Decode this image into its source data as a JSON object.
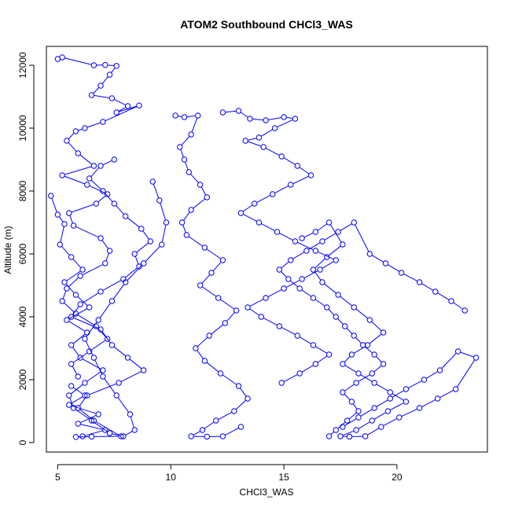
{
  "chart_data": {
    "type": "scatter",
    "title": "ATOM2 Southbound CHCl3_WAS",
    "xlabel": "CHCl3_WAS",
    "ylabel": "Altitude (m)",
    "xlim": [
      4.5,
      24.0
    ],
    "ylim": [
      -300,
      12600
    ],
    "xticks": [
      5,
      10,
      15,
      20
    ],
    "yticks": [
      0,
      2000,
      4000,
      6000,
      8000,
      10000,
      12000
    ],
    "grid": false,
    "colors": {
      "series": "#0000ff",
      "frame": "#000000"
    },
    "series": [
      {
        "x": [
          5.0,
          5.2,
          6.6,
          7.1,
          7.6,
          7.3,
          6.9,
          6.5,
          7.4,
          8.1,
          7.6,
          8.6,
          7.0,
          6.2,
          5.8,
          5.4,
          5.9,
          6.6,
          5.2,
          6.3,
          7.2,
          6.7,
          5.5,
          5.7,
          6.9,
          7.3,
          7.1,
          6.0,
          5.4,
          5.2,
          5.8,
          6.7,
          7.2,
          6.4,
          5.6,
          5.9
        ],
        "y": [
          12200,
          12250,
          12000,
          12010,
          11980,
          11700,
          11350,
          11050,
          10950,
          10700,
          10500,
          10720,
          10200,
          10000,
          9900,
          9600,
          9200,
          8800,
          8500,
          8200,
          7900,
          7600,
          7300,
          6900,
          6500,
          6100,
          5700,
          5300,
          4900,
          4500,
          4100,
          3700,
          3300,
          2900,
          2500,
          2100
        ]
      },
      {
        "x": [
          5.6,
          6.2,
          5.5,
          6.8,
          5.9,
          7.1,
          6.1,
          5.8,
          6.5,
          7.8,
          6.6,
          5.9,
          6.3,
          7.7,
          8.8,
          8.1,
          7.4,
          6.9,
          5.6,
          6.0,
          6.9,
          7.9,
          8.6,
          8.4,
          9.1,
          8.7,
          8.0,
          7.5,
          7.0,
          6.4,
          6.9,
          7.5
        ],
        "y": [
          1800,
          1500,
          1200,
          900,
          600,
          400,
          200,
          180,
          190,
          200,
          700,
          1100,
          1500,
          1900,
          2300,
          2700,
          3100,
          3600,
          4000,
          4400,
          4800,
          5200,
          5600,
          6000,
          6400,
          6800,
          7200,
          7600,
          8000,
          8400,
          8800,
          9000
        ]
      },
      {
        "x": [
          4.7,
          5.0,
          5.3,
          5.1,
          5.6,
          6.1,
          5.3,
          5.8,
          6.4,
          5.4,
          6.3,
          5.6,
          6.0,
          7.0,
          6.2,
          5.5,
          5.7,
          6.5,
          7.3,
          7.9,
          8.4,
          8.2,
          7.6,
          7.0,
          6.6,
          6.2,
          6.8,
          7.4,
          8.0,
          8.8,
          9.6,
          9.8,
          9.5,
          9.2
        ],
        "y": [
          7850,
          7250,
          6950,
          6300,
          5900,
          5500,
          5100,
          4700,
          4300,
          3900,
          3500,
          3100,
          2700,
          2300,
          1900,
          1500,
          1100,
          700,
          300,
          200,
          400,
          900,
          1500,
          2100,
          2700,
          3300,
          3900,
          4500,
          5100,
          5700,
          6300,
          7000,
          7700,
          8300
        ]
      },
      {
        "x": [
          10.2,
          10.6,
          11.2,
          10.9,
          10.4,
          10.6,
          10.8,
          11.3,
          11.6,
          10.9,
          10.5,
          10.7,
          11.5,
          12.3,
          11.8,
          11.3,
          12.1,
          12.9,
          12.4,
          11.7,
          11.1,
          11.5,
          12.2,
          13.0,
          13.4,
          12.8,
          12.0,
          11.4,
          10.9,
          11.6,
          12.3,
          13.1
        ],
        "y": [
          10400,
          10350,
          10400,
          9800,
          9400,
          9000,
          8600,
          8200,
          7800,
          7400,
          7000,
          6600,
          6200,
          5800,
          5400,
          5000,
          4600,
          4200,
          3800,
          3400,
          3000,
          2600,
          2200,
          1800,
          1400,
          1000,
          700,
          400,
          200,
          190,
          200,
          500
        ]
      },
      {
        "x": [
          12.3,
          13.0,
          13.5,
          14.2,
          15.0,
          15.5,
          14.6,
          13.9,
          13.3,
          14.1,
          14.9,
          15.6,
          16.2,
          15.3,
          14.5,
          13.7,
          13.1,
          13.9,
          14.7,
          15.5,
          16.4,
          17.3,
          16.6,
          15.8,
          15.0,
          14.2,
          13.4,
          14.0,
          14.8,
          15.6,
          16.3,
          17.0,
          16.4,
          15.7,
          14.9
        ],
        "y": [
          10500,
          10550,
          10300,
          10250,
          10350,
          10300,
          10000,
          9700,
          9600,
          9400,
          9100,
          8800,
          8500,
          8200,
          7900,
          7600,
          7300,
          7000,
          6700,
          6400,
          6100,
          5800,
          5500,
          5200,
          4900,
          4600,
          4300,
          4000,
          3700,
          3400,
          3100,
          2800,
          2500,
          2200,
          1900
        ]
      },
      {
        "x": [
          15.8,
          16.4,
          17.0,
          17.6,
          16.9,
          16.3,
          16.7,
          17.4,
          18.1,
          18.8,
          19.4,
          18.7,
          18.0,
          17.6,
          18.3,
          19.0,
          19.7,
          20.4,
          19.6,
          18.9,
          18.2,
          17.5,
          17.9,
          18.6,
          19.3,
          20.1,
          21.0,
          21.8,
          22.6,
          23.5,
          22.7,
          21.9,
          21.2,
          20.4,
          19.7,
          19.0,
          18.3,
          17.6
        ],
        "y": [
          6500,
          6700,
          7000,
          6300,
          5900,
          5500,
          5100,
          4700,
          4300,
          3900,
          3500,
          3100,
          2800,
          2500,
          2200,
          1900,
          1600,
          1300,
          1000,
          700,
          400,
          200,
          190,
          200,
          500,
          800,
          1100,
          1400,
          1700,
          2700,
          2900,
          2300,
          2000,
          1700,
          1400,
          1100,
          800,
          500
        ]
      },
      {
        "x": [
          17.0,
          17.3,
          17.8,
          18.3,
          18.0,
          17.6,
          18.2,
          18.9,
          19.4,
          19.0,
          18.5,
          18.1,
          17.7,
          17.3,
          16.9,
          16.3,
          15.7,
          15.2,
          14.8,
          15.3,
          16.0,
          16.7,
          17.4,
          18.1,
          18.8,
          19.5,
          20.2,
          21.0,
          21.7,
          22.4,
          23.0
        ],
        "y": [
          200,
          400,
          700,
          1000,
          1300,
          1600,
          1900,
          2200,
          2500,
          2800,
          3100,
          3400,
          3700,
          4000,
          4300,
          4600,
          4900,
          5200,
          5500,
          5800,
          6100,
          6400,
          6700,
          7000,
          6000,
          5700,
          5400,
          5100,
          4800,
          4500,
          4200
        ]
      }
    ]
  }
}
